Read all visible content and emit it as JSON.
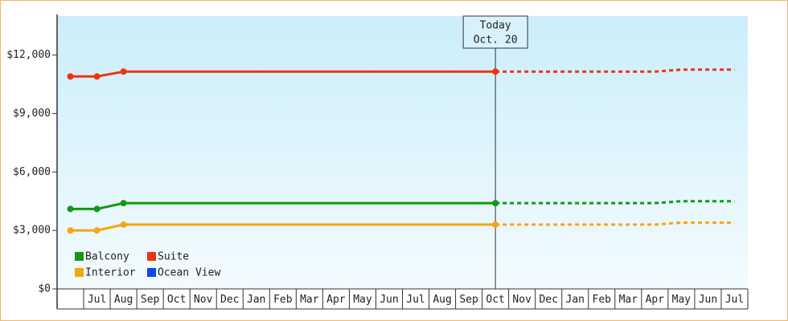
{
  "chart_data": {
    "type": "line",
    "categories": [
      null,
      "Jul",
      "Aug",
      "Sep",
      "Oct",
      "Nov",
      "Dec",
      "Jan",
      "Feb",
      "Mar",
      "Apr",
      "May",
      "Jun",
      "Jul",
      "Aug",
      "Sep",
      "Oct",
      "Nov",
      "Dec",
      "Jan",
      "Feb",
      "Mar",
      "Apr",
      "May",
      "Jun",
      "Jul"
    ],
    "series": [
      {
        "name": "Balcony",
        "color": "#119911",
        "values": [
          4100,
          4100,
          4400,
          4400,
          4400,
          4400,
          4400,
          4400,
          4400,
          4400,
          4400,
          4400,
          4400,
          4400,
          4400,
          4400,
          4400,
          4400,
          4400,
          4400,
          4400,
          4400,
          4400,
          4500,
          4500,
          4500
        ]
      },
      {
        "name": "Suite",
        "color": "#ee3311",
        "values": [
          10900,
          10900,
          11150,
          11150,
          11150,
          11150,
          11150,
          11150,
          11150,
          11150,
          11150,
          11150,
          11150,
          11150,
          11150,
          11150,
          11150,
          11150,
          11150,
          11150,
          11150,
          11150,
          11150,
          11250,
          11250,
          11250
        ]
      },
      {
        "name": "Interior",
        "color": "#f5a511",
        "values": [
          3000,
          3000,
          3300,
          3300,
          3300,
          3300,
          3300,
          3300,
          3300,
          3300,
          3300,
          3300,
          3300,
          3300,
          3300,
          3300,
          3300,
          3300,
          3300,
          3300,
          3300,
          3300,
          3300,
          3400,
          3400,
          3400
        ]
      },
      {
        "name": "Ocean View",
        "color": "#1144ee",
        "values": [
          null,
          null,
          null,
          null,
          null,
          null,
          null,
          null,
          null,
          null,
          null,
          null,
          null,
          null,
          null,
          null,
          null,
          null,
          null,
          null,
          null,
          null,
          null,
          null,
          null,
          null
        ]
      }
    ],
    "ylim": [
      0,
      14000
    ],
    "yticks": [
      {
        "value": 0,
        "label": "$0"
      },
      {
        "value": 3000,
        "label": "$3,000"
      },
      {
        "value": 6000,
        "label": "$6,000"
      },
      {
        "value": 9000,
        "label": "$9,000"
      },
      {
        "value": 12000,
        "label": "$12,000"
      }
    ],
    "today": {
      "lines": [
        "Today",
        "Oct. 20"
      ],
      "index": 16
    },
    "legend": "bottom-left",
    "grid": false
  }
}
